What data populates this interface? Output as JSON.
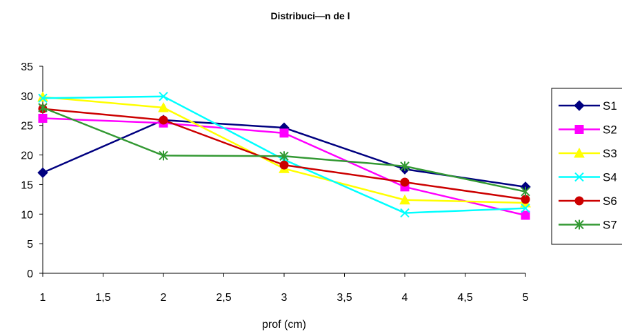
{
  "chart_data": {
    "type": "line",
    "title": "Distribuci—n de l",
    "xlabel": "prof (cm)",
    "ylabel": "",
    "x": [
      1,
      2,
      3,
      4,
      5
    ],
    "xlim": [
      1,
      5
    ],
    "ylim": [
      0,
      35
    ],
    "x_ticks": [
      "1",
      "1,5",
      "2",
      "2,5",
      "3",
      "3,5",
      "4",
      "4,5",
      "5"
    ],
    "y_ticks": [
      "0",
      "5",
      "10",
      "15",
      "20",
      "25",
      "30",
      "35"
    ],
    "grid": false,
    "legend_position": "right",
    "series": [
      {
        "name": "S1",
        "color": "#000080",
        "marker": "diamond",
        "values": [
          17.0,
          25.9,
          24.6,
          17.6,
          14.6
        ]
      },
      {
        "name": "S2",
        "color": "#FF00FF",
        "marker": "square",
        "values": [
          26.2,
          25.4,
          23.7,
          14.6,
          9.8
        ]
      },
      {
        "name": "S3",
        "color": "#FFFF00",
        "marker": "triangle",
        "values": [
          29.8,
          28.0,
          17.7,
          12.4,
          11.9
        ]
      },
      {
        "name": "S4",
        "color": "#00FFFF",
        "marker": "x",
        "values": [
          29.6,
          29.9,
          19.2,
          10.2,
          11.0
        ]
      },
      {
        "name": "S6",
        "color": "#CC0000",
        "marker": "circle",
        "values": [
          27.8,
          25.9,
          18.3,
          15.4,
          12.5
        ]
      },
      {
        "name": "S7",
        "color": "#339933",
        "marker": "star",
        "values": [
          28.0,
          19.9,
          19.8,
          18.1,
          13.8
        ]
      }
    ]
  }
}
